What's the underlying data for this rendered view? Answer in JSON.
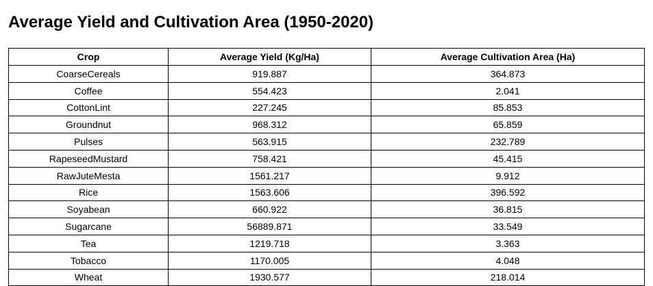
{
  "title": "Average Yield and Cultivation Area (1950-2020)",
  "table": {
    "headers": [
      "Crop",
      "Average Yield (Kg/Ha)",
      "Average Cultivation Area (Ha)"
    ],
    "rows": [
      [
        "CoarseCereals",
        "919.887",
        "364.873"
      ],
      [
        "Coffee",
        "554.423",
        "2.041"
      ],
      [
        "CottonLint",
        "227.245",
        "85.853"
      ],
      [
        "Groundnut",
        "968.312",
        "65.859"
      ],
      [
        "Pulses",
        "563.915",
        "232.789"
      ],
      [
        "RapeseedMustard",
        "758.421",
        "45.415"
      ],
      [
        "RawJuteMesta",
        "1561.217",
        "9.912"
      ],
      [
        "Rice",
        "1563.606",
        "396.592"
      ],
      [
        "Soyabean",
        "660.922",
        "36.815"
      ],
      [
        "Sugarcane",
        "56889.871",
        "33.549"
      ],
      [
        "Tea",
        "1219.718",
        "3.363"
      ],
      [
        "Tobacco",
        "1170.005",
        "4.048"
      ],
      [
        "Wheat",
        "1930.577",
        "218.014"
      ]
    ]
  }
}
